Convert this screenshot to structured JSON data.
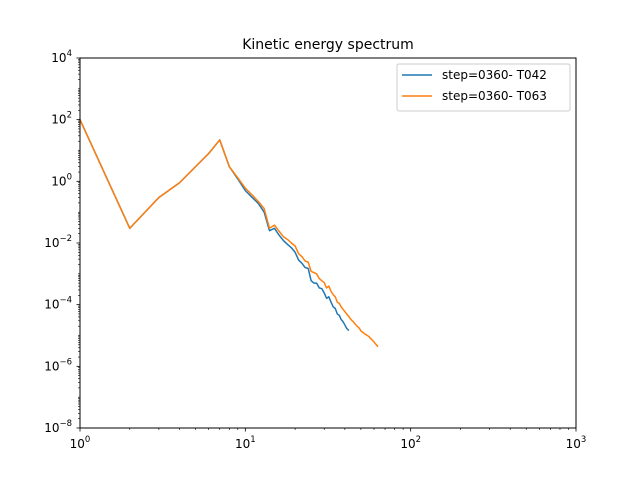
{
  "chart_data": {
    "type": "line",
    "title": "Kinetic energy spectrum",
    "xlabel": "",
    "ylabel": "",
    "xscale": "log",
    "yscale": "log",
    "xlim": [
      1,
      1000
    ],
    "ylim": [
      1e-08,
      10000
    ],
    "grid": false,
    "legend_position": "top-right",
    "x_tick_labels": [
      {
        "value": 1,
        "mantissa": "10",
        "exp": "0"
      },
      {
        "value": 10,
        "mantissa": "10",
        "exp": "1"
      },
      {
        "value": 100,
        "mantissa": "10",
        "exp": "2"
      },
      {
        "value": 1000,
        "mantissa": "10",
        "exp": "3"
      }
    ],
    "y_tick_labels": [
      {
        "value": 1e-08,
        "mantissa": "10",
        "exp": "−8"
      },
      {
        "value": 1e-06,
        "mantissa": "10",
        "exp": "−6"
      },
      {
        "value": 0.0001,
        "mantissa": "10",
        "exp": "−4"
      },
      {
        "value": 0.01,
        "mantissa": "10",
        "exp": "−2"
      },
      {
        "value": 1,
        "mantissa": "10",
        "exp": "0"
      },
      {
        "value": 100,
        "mantissa": "10",
        "exp": "2"
      },
      {
        "value": 10000,
        "mantissa": "10",
        "exp": "4"
      }
    ],
    "series": [
      {
        "name": "step=0360- T042",
        "color": "#1f77b4",
        "x": [
          1,
          2,
          3,
          4,
          5,
          6,
          7,
          8,
          9,
          10,
          11,
          12,
          13,
          14,
          15,
          16,
          17,
          18,
          19,
          20,
          21,
          22,
          23,
          24,
          25,
          26,
          27,
          28,
          29,
          30,
          31,
          32,
          33,
          34,
          35,
          36,
          37,
          38,
          39,
          40,
          41,
          42
        ],
        "y": [
          100,
          0.03,
          0.3,
          0.9,
          3,
          8,
          22,
          3,
          1.2,
          0.5,
          0.3,
          0.19,
          0.1,
          0.025,
          0.03,
          0.018,
          0.012,
          0.009,
          0.007,
          0.005,
          0.0028,
          0.0022,
          0.0016,
          0.0015,
          0.0006,
          0.0005,
          0.0005,
          0.00035,
          0.00033,
          0.00024,
          0.00016,
          0.00018,
          0.00012,
          8.5e-05,
          7.5e-05,
          5e-05,
          4.5e-05,
          3.3e-05,
          2.8e-05,
          2.2e-05,
          1.7e-05,
          1.5e-05
        ]
      },
      {
        "name": "step=0360- T063",
        "color": "#ff7f0e",
        "x": [
          1,
          2,
          3,
          4,
          5,
          6,
          7,
          8,
          9,
          10,
          11,
          12,
          13,
          14,
          15,
          16,
          17,
          18,
          19,
          20,
          21,
          22,
          23,
          24,
          25,
          26,
          27,
          28,
          29,
          30,
          31,
          32,
          33,
          34,
          35,
          36,
          37,
          38,
          39,
          40,
          41,
          42,
          43,
          44,
          45,
          46,
          47,
          48,
          49,
          50,
          51,
          52,
          53,
          54,
          55,
          56,
          57,
          58,
          59,
          60,
          61,
          62,
          63
        ],
        "y": [
          100,
          0.03,
          0.3,
          0.9,
          3,
          8,
          22,
          3,
          1.3,
          0.6,
          0.36,
          0.22,
          0.13,
          0.03,
          0.038,
          0.024,
          0.016,
          0.013,
          0.01,
          0.008,
          0.0045,
          0.0036,
          0.0026,
          0.0024,
          0.0012,
          0.0011,
          0.001,
          0.0007,
          0.0006,
          0.00052,
          0.00035,
          0.0004,
          0.00027,
          0.00021,
          0.00018,
          0.00012,
          0.00011,
          8.5e-05,
          7e-05,
          6e-05,
          5e-05,
          4.3e-05,
          3.6e-05,
          3.1e-05,
          2.8e-05,
          2.4e-05,
          2.1e-05,
          1.9e-05,
          1.7e-05,
          1.4e-05,
          1.3e-05,
          1.2e-05,
          1.1e-05,
          1.05e-05,
          9.8e-06,
          9.2e-06,
          8.2e-06,
          7.5e-06,
          6.8e-06,
          6.2e-06,
          5.5e-06,
          5e-06,
          4.5e-06
        ]
      }
    ]
  }
}
